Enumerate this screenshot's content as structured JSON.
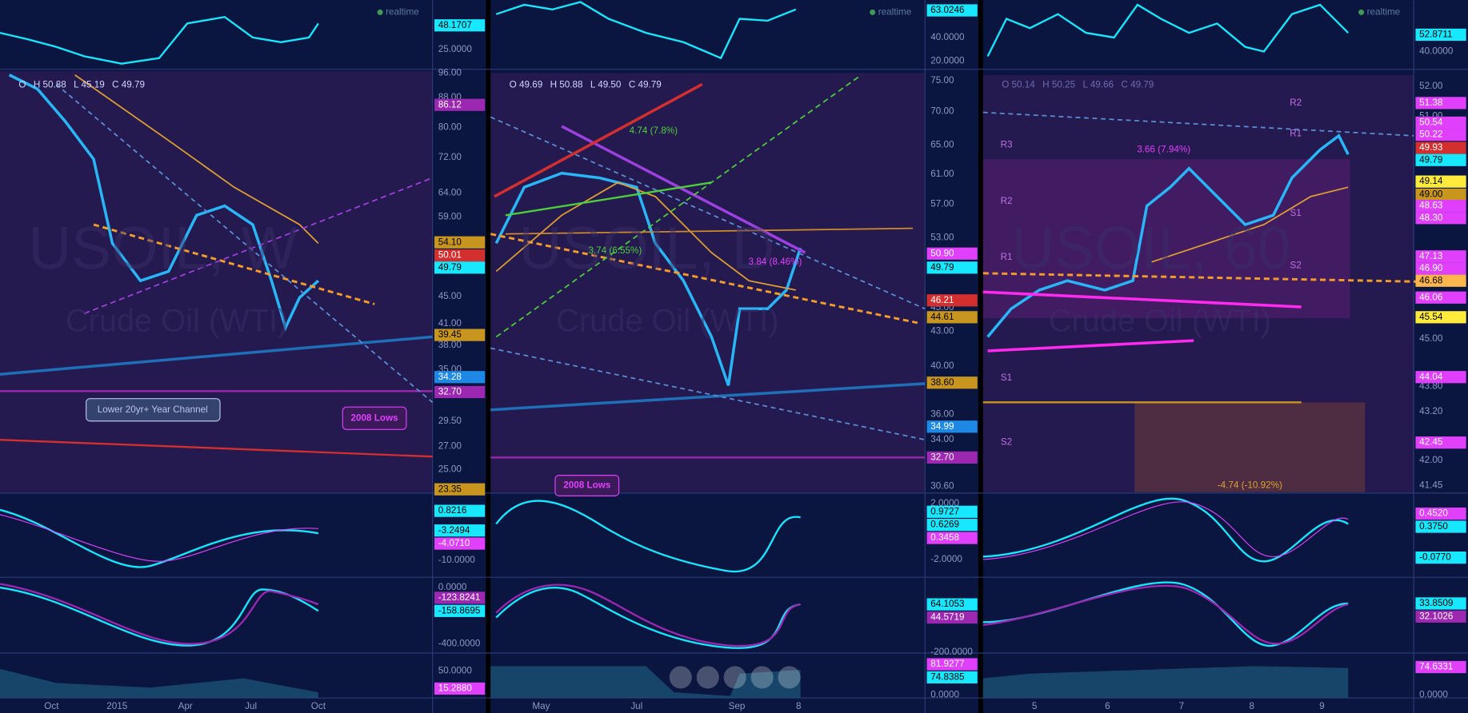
{
  "panels": [
    {
      "ohlc": [
        "O",
        "H 50.88",
        "L 45.19",
        "C 49.79"
      ],
      "realtime": "realtime",
      "watermark": "USOIL, W",
      "subtitle": "Crude Oil (WTI)",
      "top": {
        "labels": [
          "25.0000"
        ],
        "tags": [
          {
            "text": "48.1707",
            "color": "#18e8ff"
          }
        ]
      },
      "main": {
        "labels": [
          "96.00",
          "88.00",
          "80.00",
          "72.00",
          "64.00",
          "59.00",
          "45.00",
          "41.00",
          "38.00",
          "35.00",
          "32.00",
          "29.50",
          "27.00",
          "25.00"
        ],
        "tags": [
          {
            "text": "86.12",
            "color": "#9c27b0"
          },
          {
            "text": "54.10",
            "color": "#c8961e"
          },
          {
            "text": "50.01",
            "color": "#d32f2f"
          },
          {
            "text": "49.79",
            "color": "#18e8ff"
          },
          {
            "text": "39.45",
            "color": "#c8961e"
          },
          {
            "text": "34.28",
            "color": "#1e88e5"
          },
          {
            "text": "32.70",
            "color": "#9c27b0"
          },
          {
            "text": "23.35",
            "color": "#c8961e"
          }
        ]
      },
      "macd": {
        "labels": [
          "-10.0000"
        ],
        "tags": [
          {
            "text": "0.8216",
            "color": "#18e8ff"
          },
          {
            "text": "-3.2494",
            "color": "#18e8ff"
          },
          {
            "text": "-4.0710",
            "color": "#e040fb"
          }
        ]
      },
      "stoch": {
        "labels": [
          "0.0000",
          "-400.0000"
        ],
        "tags": [
          {
            "text": "-123.8241",
            "color": "#9c27b0"
          },
          {
            "text": "-158.8695",
            "color": "#18e8ff"
          }
        ]
      },
      "bottom": {
        "labels": [
          "50.0000"
        ],
        "tags": [
          {
            "text": "15.2880",
            "color": "#e040fb"
          }
        ]
      },
      "x_labels": [
        "Oct",
        "2015",
        "Apr",
        "Jul",
        "Oct"
      ],
      "annotations": [
        {
          "text": "Lower 20yr+ Year Channel"
        },
        {
          "text": "2008 Lows"
        }
      ]
    },
    {
      "ohlc": [
        "O 49.69",
        "H 50.88",
        "L 49.50",
        "C 49.79"
      ],
      "realtime": "realtime",
      "watermark": "USOIL, D",
      "subtitle": "Crude Oil (WTI)",
      "top": {
        "labels": [
          "40.0000",
          "20.0000"
        ],
        "tags": [
          {
            "text": "63.0246",
            "color": "#18e8ff"
          }
        ]
      },
      "main": {
        "labels": [
          "75.00",
          "70.00",
          "65.00",
          "61.00",
          "57.00",
          "53.00",
          "45.00",
          "43.00",
          "40.00",
          "36.00",
          "34.00",
          "30.60"
        ],
        "tags": [
          {
            "text": "50.90",
            "color": "#e040fb"
          },
          {
            "text": "49.79",
            "color": "#18e8ff"
          },
          {
            "text": "46.21",
            "color": "#d32f2f"
          },
          {
            "text": "44.61",
            "color": "#c8961e"
          },
          {
            "text": "38.60",
            "color": "#c8961e"
          },
          {
            "text": "34.99",
            "color": "#1e88e5"
          },
          {
            "text": "32.70",
            "color": "#9c27b0"
          }
        ]
      },
      "macd": {
        "labels": [
          "2.0000",
          "-2.0000"
        ],
        "tags": [
          {
            "text": "0.9727",
            "color": "#18e8ff"
          },
          {
            "text": "0.6269",
            "color": "#18e8ff"
          },
          {
            "text": "0.3458",
            "color": "#e040fb"
          }
        ]
      },
      "stoch": {
        "labels": [
          "-200.0000"
        ],
        "tags": [
          {
            "text": "64.1053",
            "color": "#18e8ff"
          },
          {
            "text": "44.5719",
            "color": "#9c27b0"
          }
        ]
      },
      "bottom": {
        "labels": [
          "0.0000"
        ],
        "tags": [
          {
            "text": "81.9277",
            "color": "#e040fb"
          },
          {
            "text": "74.8385",
            "color": "#18e8ff"
          }
        ]
      },
      "x_labels": [
        "May",
        "Jul",
        "Sep",
        "8"
      ],
      "annotations": [
        {
          "text": "2008 Lows"
        },
        {
          "text": "4.74 (7.8%)"
        },
        {
          "text": "3.74 (6.55%)"
        },
        {
          "text": "3.84 (8.46%)"
        }
      ]
    },
    {
      "ohlc": [
        "O 50.14",
        "H 50.25",
        "L 49.66",
        "C 49.79"
      ],
      "realtime": "realtime",
      "watermark": "USOIL, 60",
      "subtitle": "Crude Oil (WTI)",
      "top": {
        "labels": [
          "40.0000"
        ],
        "tags": [
          {
            "text": "52.8711",
            "color": "#18e8ff"
          }
        ]
      },
      "main": {
        "labels": [
          "52.00",
          "51.00",
          "45.00",
          "43.80",
          "43.20",
          "42.00",
          "41.45"
        ],
        "tags": [
          {
            "text": "51.38",
            "color": "#e040fb"
          },
          {
            "text": "50.54",
            "color": "#e040fb"
          },
          {
            "text": "50.22",
            "color": "#e040fb"
          },
          {
            "text": "49.93",
            "color": "#d32f2f"
          },
          {
            "text": "49.79",
            "color": "#18e8ff"
          },
          {
            "text": "49.14",
            "color": "#ffeb3b"
          },
          {
            "text": "49.00",
            "color": "#c8961e"
          },
          {
            "text": "48.63",
            "color": "#e040fb"
          },
          {
            "text": "48.30",
            "color": "#e040fb"
          },
          {
            "text": "47.13",
            "color": "#e040fb"
          },
          {
            "text": "46.90",
            "color": "#e040fb"
          },
          {
            "text": "46.68",
            "color": "#ffb74d"
          },
          {
            "text": "46.06",
            "color": "#e040fb"
          },
          {
            "text": "45.54",
            "color": "#ffeb3b"
          },
          {
            "text": "44.04",
            "color": "#e040fb"
          },
          {
            "text": "42.45",
            "color": "#e040fb"
          }
        ]
      },
      "macd": {
        "labels": [],
        "tags": [
          {
            "text": "0.4520",
            "color": "#e040fb"
          },
          {
            "text": "0.3750",
            "color": "#18e8ff"
          },
          {
            "text": "-0.0770",
            "color": "#18e8ff"
          }
        ]
      },
      "stoch": {
        "labels": [],
        "tags": [
          {
            "text": "33.8509",
            "color": "#18e8ff"
          },
          {
            "text": "32.1026",
            "color": "#9c27b0"
          }
        ]
      },
      "bottom": {
        "labels": [
          "0.0000"
        ],
        "tags": [
          {
            "text": "74.6331",
            "color": "#e040fb"
          }
        ]
      },
      "x_labels": [
        "5",
        "6",
        "7",
        "8",
        "9"
      ],
      "annotations": [
        {
          "text": "3.66 (7.94%)"
        },
        {
          "text": "-4.74 (-10.92%)"
        },
        {
          "text": "R2"
        },
        {
          "text": "R1"
        },
        {
          "text": "R3"
        },
        {
          "text": "R2"
        },
        {
          "text": "S1"
        },
        {
          "text": "R1"
        },
        {
          "text": "S2"
        },
        {
          "text": "S1"
        },
        {
          "text": "S2"
        }
      ]
    }
  ]
}
